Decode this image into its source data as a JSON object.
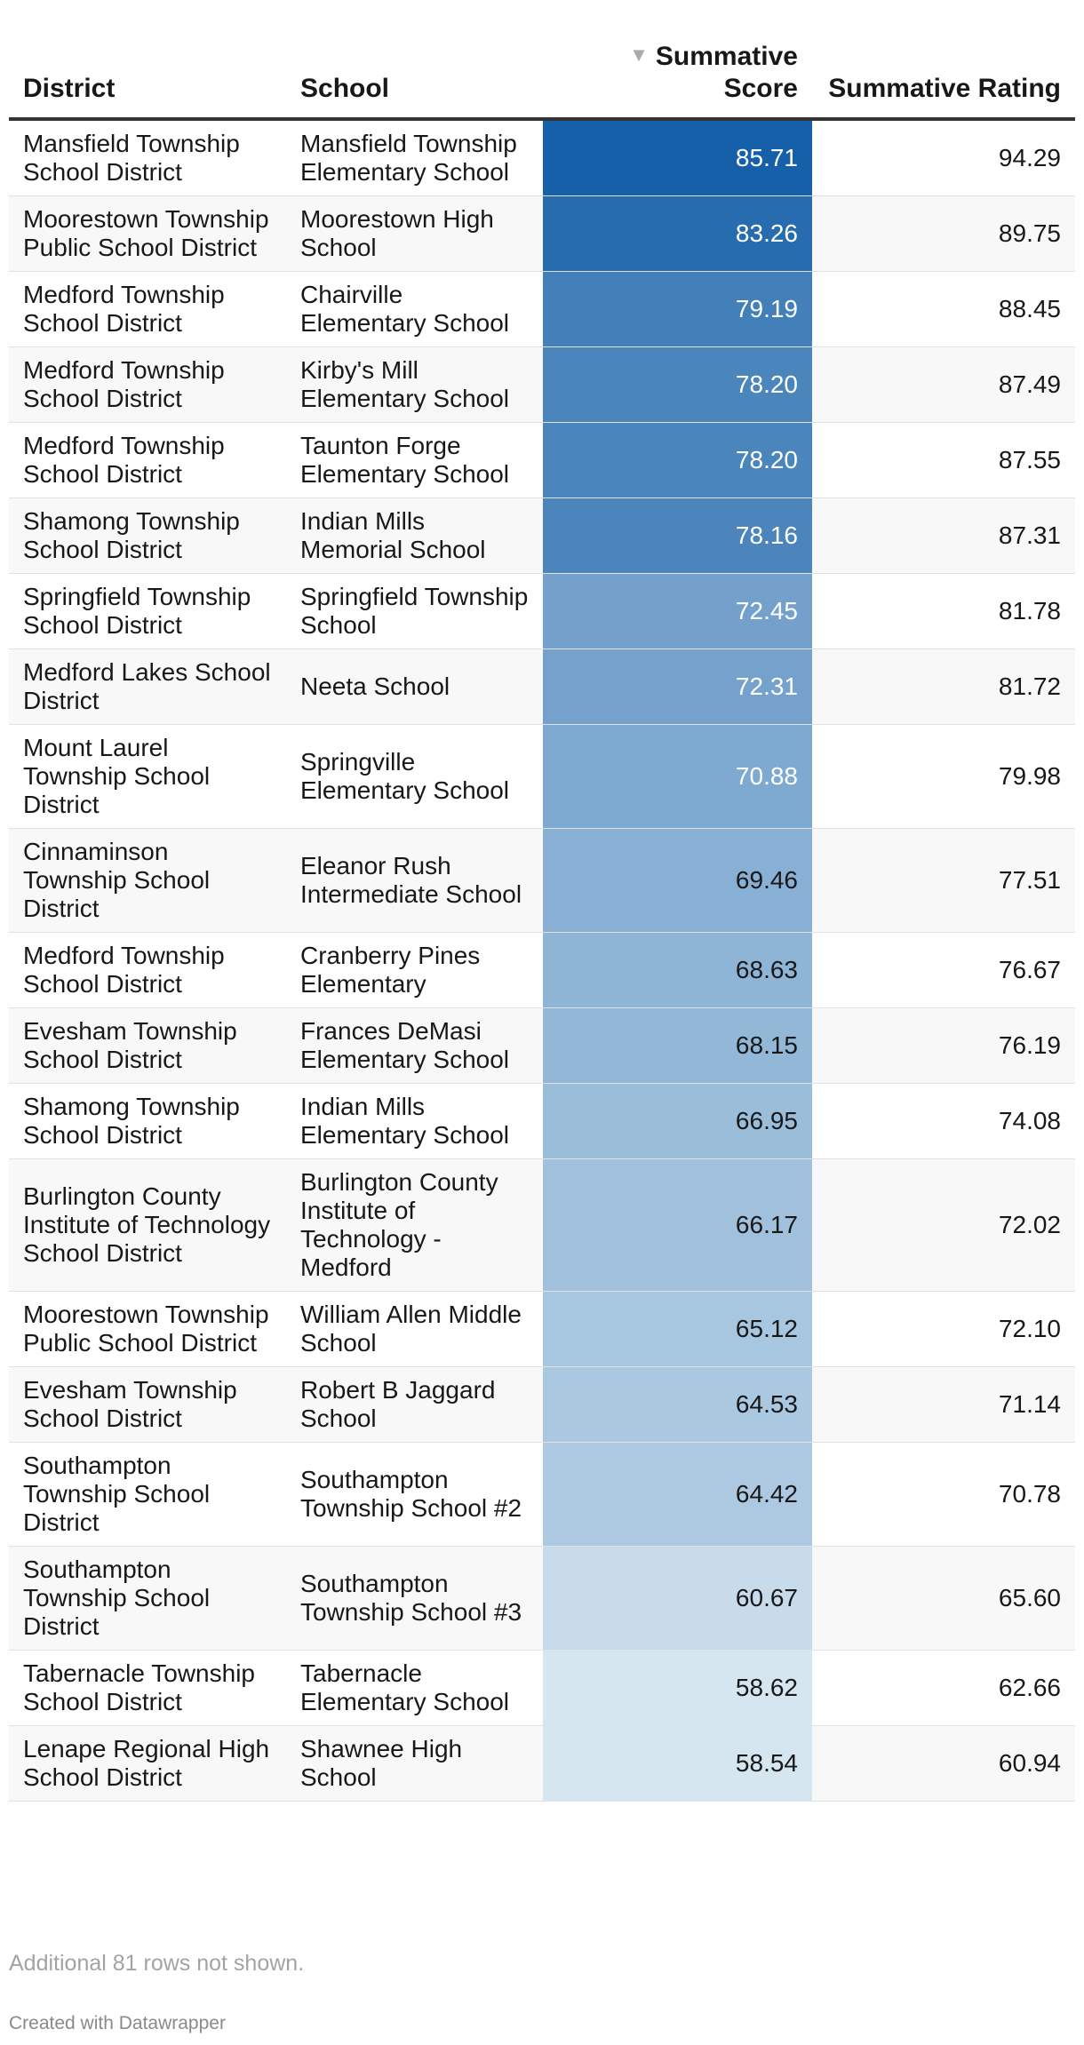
{
  "chart_data": {
    "type": "table",
    "columns": [
      {
        "label": "District"
      },
      {
        "label": "School"
      },
      {
        "label": "Summative Score",
        "sorted": "descending"
      },
      {
        "label": "Summative Rating"
      }
    ],
    "color_scale": {
      "min": 58.54,
      "max": 85.71,
      "low_color": "#d6e6f1",
      "high_color": "#1560a8"
    },
    "rows": [
      {
        "district": "Mansfield Township School District",
        "school": "Mansfield Township Elementary School",
        "score": 85.71,
        "score_text": "85.71",
        "rating": "94.29"
      },
      {
        "district": "Moorestown Township Public School District",
        "school": "Moorestown High School",
        "score": 83.26,
        "score_text": "83.26",
        "rating": "89.75"
      },
      {
        "district": "Medford Township School District",
        "school": "Chairville Elementary School",
        "score": 79.19,
        "score_text": "79.19",
        "rating": "88.45"
      },
      {
        "district": "Medford Township School District",
        "school": "Kirby's Mill Elementary School",
        "score": 78.2,
        "score_text": "78.20",
        "rating": "87.49"
      },
      {
        "district": "Medford Township School District",
        "school": "Taunton Forge Elementary School",
        "score": 78.2,
        "score_text": "78.20",
        "rating": "87.55"
      },
      {
        "district": "Shamong Township School District",
        "school": "Indian Mills Memorial School",
        "score": 78.16,
        "score_text": "78.16",
        "rating": "87.31"
      },
      {
        "district": "Springfield Township School District",
        "school": "Springfield Township School",
        "score": 72.45,
        "score_text": "72.45",
        "rating": "81.78"
      },
      {
        "district": "Medford Lakes School District",
        "school": "Neeta School",
        "score": 72.31,
        "score_text": "72.31",
        "rating": "81.72"
      },
      {
        "district": "Mount Laurel Township School District",
        "school": "Springville Elementary School",
        "score": 70.88,
        "score_text": "70.88",
        "rating": "79.98"
      },
      {
        "district": "Cinnaminson Township School District",
        "school": "Eleanor Rush Intermediate School",
        "score": 69.46,
        "score_text": "69.46",
        "rating": "77.51"
      },
      {
        "district": "Medford Township School District",
        "school": "Cranberry Pines Elementary",
        "score": 68.63,
        "score_text": "68.63",
        "rating": "76.67"
      },
      {
        "district": "Evesham Township School District",
        "school": "Frances DeMasi Elementary School",
        "score": 68.15,
        "score_text": "68.15",
        "rating": "76.19"
      },
      {
        "district": "Shamong Township School District",
        "school": "Indian Mills Elementary School",
        "score": 66.95,
        "score_text": "66.95",
        "rating": "74.08"
      },
      {
        "district": "Burlington County Institute of Technology School District",
        "school": "Burlington County Institute of Technology - Medford",
        "score": 66.17,
        "score_text": "66.17",
        "rating": "72.02"
      },
      {
        "district": "Moorestown Township Public School District",
        "school": "William Allen Middle School",
        "score": 65.12,
        "score_text": "65.12",
        "rating": "72.10"
      },
      {
        "district": "Evesham Township School District",
        "school": "Robert B Jaggard School",
        "score": 64.53,
        "score_text": "64.53",
        "rating": "71.14"
      },
      {
        "district": "Southampton Township School District",
        "school": "Southampton Township School #2",
        "score": 64.42,
        "score_text": "64.42",
        "rating": "70.78"
      },
      {
        "district": "Southampton Township School District",
        "school": "Southampton Township School #3",
        "score": 60.67,
        "score_text": "60.67",
        "rating": "65.60"
      },
      {
        "district": "Tabernacle Township School District",
        "school": "Tabernacle Elementary School",
        "score": 58.62,
        "score_text": "58.62",
        "rating": "62.66"
      },
      {
        "district": "Lenape Regional High School District",
        "school": "Shawnee High School",
        "score": 58.54,
        "score_text": "58.54",
        "rating": "60.94"
      }
    ]
  },
  "notes": {
    "rows_hidden": "Additional 81 rows not shown.",
    "credit": "Created with Datawrapper"
  },
  "icons": {
    "sort": "sort-descending-icon"
  }
}
